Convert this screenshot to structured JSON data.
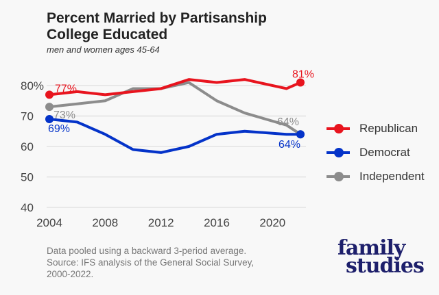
{
  "chart_data": {
    "type": "line",
    "title": "Percent Married by Partisanship College Educated",
    "title_lines": [
      "Percent Married by Partisanship",
      "College Educated"
    ],
    "subtitle": "men and women ages 45-64",
    "x": [
      2004,
      2006,
      2008,
      2010,
      2012,
      2014,
      2016,
      2018,
      2021,
      2022
    ],
    "xticks": [
      "2004",
      "2008",
      "2012",
      "2016",
      "2020"
    ],
    "yticks": [
      "40",
      "50",
      "60",
      "70",
      "80%"
    ],
    "ylim": [
      40,
      80
    ],
    "xlim": [
      2004,
      2022
    ],
    "grid": true,
    "legend_position": "right",
    "series": [
      {
        "name": "Republican",
        "color": "#e8141e",
        "values": [
          77,
          78,
          77,
          78,
          79,
          82,
          81,
          82,
          79,
          81
        ],
        "start_label": "77%",
        "end_label": "81%"
      },
      {
        "name": "Democrat",
        "color": "#0433c9",
        "values": [
          69,
          68,
          64,
          59,
          58,
          60,
          64,
          65,
          64,
          64
        ],
        "start_label": "69%",
        "end_label": "64%"
      },
      {
        "name": "Independent",
        "color": "#8c8c8c",
        "values": [
          73,
          74,
          75,
          79,
          79,
          81,
          75,
          71,
          67,
          64
        ],
        "start_label": "73%",
        "end_label": "64%"
      }
    ]
  },
  "note": [
    "Data pooled using a backward 3-period average.",
    "Source: IFS analysis of the General Social Survey,",
    "2000-2022."
  ],
  "logo": [
    "family",
    "studies"
  ]
}
